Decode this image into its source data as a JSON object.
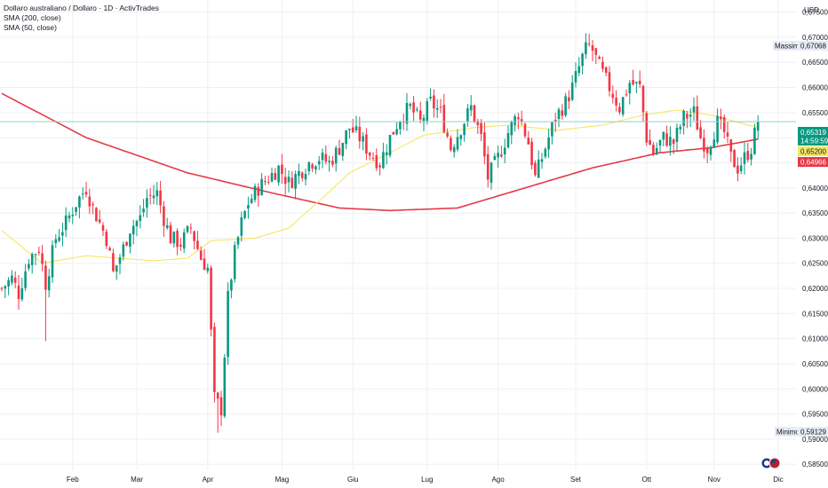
{
  "legend": {
    "title": "Dollaro australiano / Dollaro · 1D · ActivTrades",
    "sma200": "SMA (200, close)",
    "sma50": "SMA (50, close)"
  },
  "currency": "USD",
  "colors": {
    "up": "#089981",
    "down": "#f23645",
    "sma200": "#e53947",
    "sma50": "#f5e663",
    "grid": "#eef0f3",
    "price_line": "#8fd3c6"
  },
  "markers": {
    "max_label": "Massimo",
    "max_value": "0,67068",
    "min_label": "Minimo",
    "min_value": "0,59129"
  },
  "price_tags": {
    "last": "0,65319",
    "countdown": "14:59:59",
    "sma50": "0,65200",
    "sma200": "0,64966"
  },
  "chart_data": {
    "type": "candlestick",
    "title": "Dollaro australiano / Dollaro · 1D · ActivTrades",
    "y_axis_ticks": [
      "0,67500",
      "0,67000",
      "0,66500",
      "0,66000",
      "0,65500",
      "0,65000",
      "0,64500",
      "0,64000",
      "0,63500",
      "0,63000",
      "0,62500",
      "0,62000",
      "0,61500",
      "0,61000",
      "0,60500",
      "0,60000",
      "0,59500",
      "0,59000",
      "0,58500"
    ],
    "x_axis_labels": [
      "Feb",
      "Mar",
      "Apr",
      "Mag",
      "Giu",
      "Lug",
      "Ago",
      "Set",
      "Ott",
      "Nov",
      "Dic"
    ],
    "ylim": [
      0.5838,
      0.6774
    ],
    "x_month_positions": [
      21,
      40,
      61,
      83,
      104,
      126,
      147,
      170,
      191,
      211,
      230
    ],
    "n_days": 230,
    "close_anchors": [
      [
        0,
        0.62
      ],
      [
        3,
        0.622
      ],
      [
        5,
        0.619
      ],
      [
        8,
        0.626
      ],
      [
        11,
        0.628
      ],
      [
        13,
        0.621
      ],
      [
        16,
        0.63
      ],
      [
        19,
        0.633
      ],
      [
        22,
        0.637
      ],
      [
        25,
        0.64
      ],
      [
        27,
        0.636
      ],
      [
        29,
        0.633
      ],
      [
        31,
        0.63
      ],
      [
        33,
        0.623
      ],
      [
        36,
        0.628
      ],
      [
        38,
        0.632
      ],
      [
        41,
        0.634
      ],
      [
        43,
        0.638
      ],
      [
        46,
        0.639
      ],
      [
        48,
        0.634
      ],
      [
        50,
        0.63
      ],
      [
        53,
        0.629
      ],
      [
        56,
        0.632
      ],
      [
        59,
        0.626
      ],
      [
        61,
        0.624
      ],
      [
        63,
        0.598
      ],
      [
        65,
        0.596
      ],
      [
        67,
        0.618
      ],
      [
        69,
        0.627
      ],
      [
        71,
        0.633
      ],
      [
        73,
        0.637
      ],
      [
        76,
        0.64
      ],
      [
        79,
        0.642
      ],
      [
        82,
        0.644
      ],
      [
        85,
        0.641
      ],
      [
        88,
        0.643
      ],
      [
        91,
        0.645
      ],
      [
        94,
        0.646
      ],
      [
        97,
        0.645
      ],
      [
        100,
        0.648
      ],
      [
        103,
        0.652
      ],
      [
        106,
        0.65
      ],
      [
        109,
        0.647
      ],
      [
        112,
        0.645
      ],
      [
        115,
        0.65
      ],
      [
        118,
        0.654
      ],
      [
        121,
        0.656
      ],
      [
        124,
        0.653
      ],
      [
        127,
        0.657
      ],
      [
        130,
        0.655
      ],
      [
        133,
        0.648
      ],
      [
        136,
        0.652
      ],
      [
        139,
        0.656
      ],
      [
        142,
        0.65
      ],
      [
        144,
        0.642
      ],
      [
        147,
        0.646
      ],
      [
        150,
        0.651
      ],
      [
        153,
        0.655
      ],
      [
        156,
        0.649
      ],
      [
        158,
        0.642
      ],
      [
        161,
        0.648
      ],
      [
        164,
        0.654
      ],
      [
        167,
        0.657
      ],
      [
        169,
        0.66
      ],
      [
        172,
        0.666
      ],
      [
        174,
        0.669
      ],
      [
        177,
        0.664
      ],
      [
        180,
        0.66
      ],
      [
        183,
        0.656
      ],
      [
        186,
        0.661
      ],
      [
        189,
        0.66
      ],
      [
        191,
        0.65
      ],
      [
        193,
        0.647
      ],
      [
        196,
        0.65
      ],
      [
        199,
        0.649
      ],
      [
        202,
        0.654
      ],
      [
        205,
        0.655
      ],
      [
        207,
        0.65
      ],
      [
        209,
        0.648
      ],
      [
        212,
        0.653
      ],
      [
        214,
        0.651
      ],
      [
        216,
        0.646
      ],
      [
        218,
        0.644
      ],
      [
        220,
        0.646
      ],
      [
        222,
        0.648
      ],
      [
        224,
        0.6532
      ]
    ],
    "sma200_anchors": [
      [
        0,
        0.6588
      ],
      [
        25,
        0.65
      ],
      [
        55,
        0.643
      ],
      [
        80,
        0.639
      ],
      [
        100,
        0.636
      ],
      [
        115,
        0.6355
      ],
      [
        135,
        0.636
      ],
      [
        155,
        0.64
      ],
      [
        175,
        0.644
      ],
      [
        195,
        0.647
      ],
      [
        210,
        0.648
      ],
      [
        224,
        0.6497
      ]
    ],
    "sma50_anchors": [
      [
        0,
        0.6315
      ],
      [
        12,
        0.625
      ],
      [
        25,
        0.6265
      ],
      [
        45,
        0.6255
      ],
      [
        55,
        0.626
      ],
      [
        62,
        0.6295
      ],
      [
        75,
        0.63
      ],
      [
        85,
        0.632
      ],
      [
        95,
        0.638
      ],
      [
        103,
        0.643
      ],
      [
        115,
        0.647
      ],
      [
        125,
        0.6505
      ],
      [
        140,
        0.652
      ],
      [
        150,
        0.6525
      ],
      [
        165,
        0.6515
      ],
      [
        178,
        0.6525
      ],
      [
        190,
        0.6545
      ],
      [
        200,
        0.6555
      ],
      [
        210,
        0.6545
      ],
      [
        224,
        0.652
      ]
    ],
    "last_close": 0.65319,
    "sma50_last": 0.652,
    "sma200_last": 0.64966,
    "max": {
      "label": "Massimo",
      "value": 0.67068
    },
    "min": {
      "label": "Minimo",
      "value": 0.59129
    },
    "grid": true,
    "legend_position": "top-left"
  }
}
